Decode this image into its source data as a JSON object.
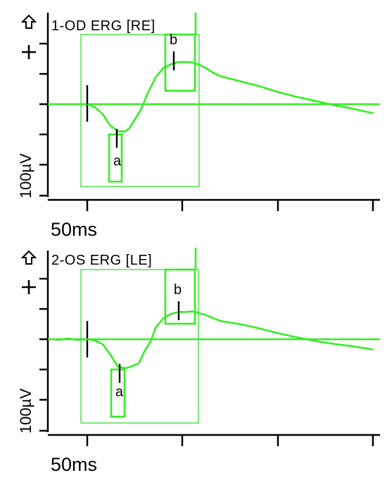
{
  "chart_data": [
    {
      "type": "line",
      "title": "1-OD ERG [RE]",
      "scale_x_label": "50ms",
      "scale_y_label": "100µV",
      "markers": [
        {
          "name": "a",
          "time_ms": 16,
          "amp_uv": -45
        },
        {
          "name": "b",
          "time_ms": 50,
          "amp_uv": 70
        }
      ],
      "series": [
        {
          "values_ms": [
            0,
            4,
            8,
            12,
            16,
            20,
            22,
            25,
            28,
            32,
            36,
            40,
            44,
            47,
            50,
            55,
            58,
            62,
            66,
            70,
            80,
            90,
            100,
            110,
            120,
            130,
            140,
            150
          ],
          "values_uv": [
            0,
            -5,
            -16,
            -35,
            -45,
            -45,
            -40,
            -25,
            -10,
            20,
            45,
            60,
            66,
            69,
            70,
            69,
            66,
            60,
            52,
            46,
            38,
            30,
            20,
            12,
            5,
            -2,
            -8,
            -15
          ]
        }
      ]
    },
    {
      "type": "line",
      "title": "2-OS ERG [LE]",
      "scale_x_label": "50ms",
      "scale_y_label": "100µV",
      "markers": [
        {
          "name": "a",
          "time_ms": 17,
          "amp_uv": -45
        },
        {
          "name": "b",
          "time_ms": 48,
          "amp_uv": 45
        }
      ],
      "series": [
        {
          "values_ms": [
            -18,
            -15,
            -10,
            -5,
            0,
            4,
            8,
            12,
            16,
            20,
            23,
            27,
            30,
            33,
            36,
            40,
            44,
            48,
            52,
            55,
            58,
            62,
            66,
            70,
            80,
            90,
            100,
            110,
            120,
            130,
            140,
            150
          ],
          "values_uv": [
            0,
            -1,
            1,
            -1,
            0,
            -2,
            -8,
            -25,
            -45,
            -48,
            -45,
            -40,
            -20,
            -5,
            20,
            35,
            42,
            45,
            45,
            46,
            44,
            40,
            35,
            30,
            25,
            18,
            10,
            3,
            -3,
            -8,
            -12,
            -17
          ]
        }
      ]
    }
  ]
}
